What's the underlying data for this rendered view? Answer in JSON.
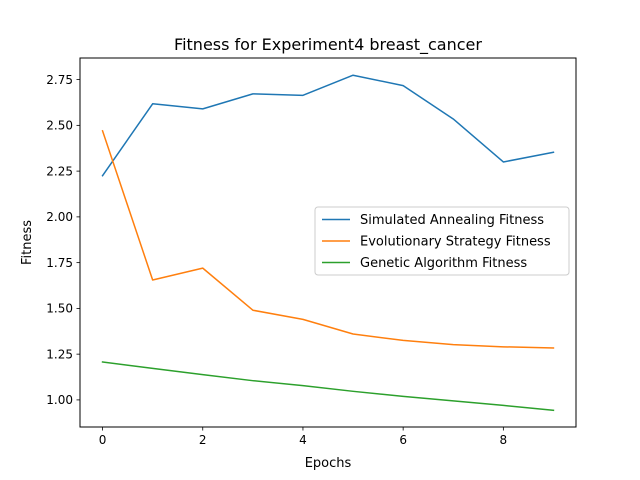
{
  "chart_data": {
    "type": "line",
    "title": "Fitness for Experiment4 breast_cancer",
    "xlabel": "Epochs",
    "ylabel": "Fitness",
    "x": [
      0,
      1,
      2,
      3,
      4,
      5,
      6,
      7,
      8,
      9
    ],
    "xlim": [
      -0.45,
      9.45
    ],
    "ylim": [
      0.852,
      2.868
    ],
    "xticks": [
      0,
      2,
      4,
      6,
      8
    ],
    "xtick_labels": [
      "0",
      "2",
      "4",
      "6",
      "8"
    ],
    "yticks": [
      1.0,
      1.25,
      1.5,
      1.75,
      2.0,
      2.25,
      2.5,
      2.75
    ],
    "ytick_labels": [
      "1.00",
      "1.25",
      "1.50",
      "1.75",
      "2.00",
      "2.25",
      "2.50",
      "2.75"
    ],
    "grid": false,
    "legend_position": "center-right",
    "series": [
      {
        "name": "Simulated Annealing Fitness",
        "color": "#1f77b4",
        "values": [
          2.225,
          2.618,
          2.59,
          2.672,
          2.664,
          2.774,
          2.717,
          2.535,
          2.3,
          2.353
        ]
      },
      {
        "name": "Evolutionary Strategy Fitness",
        "color": "#ff7f0e",
        "values": [
          2.47,
          1.655,
          1.72,
          1.49,
          1.44,
          1.36,
          1.325,
          1.302,
          1.29,
          1.284
        ]
      },
      {
        "name": "Genetic Algorithm Fitness",
        "color": "#2ca02c",
        "values": [
          1.207,
          1.172,
          1.138,
          1.105,
          1.078,
          1.047,
          1.019,
          0.995,
          0.97,
          0.943
        ]
      }
    ]
  }
}
